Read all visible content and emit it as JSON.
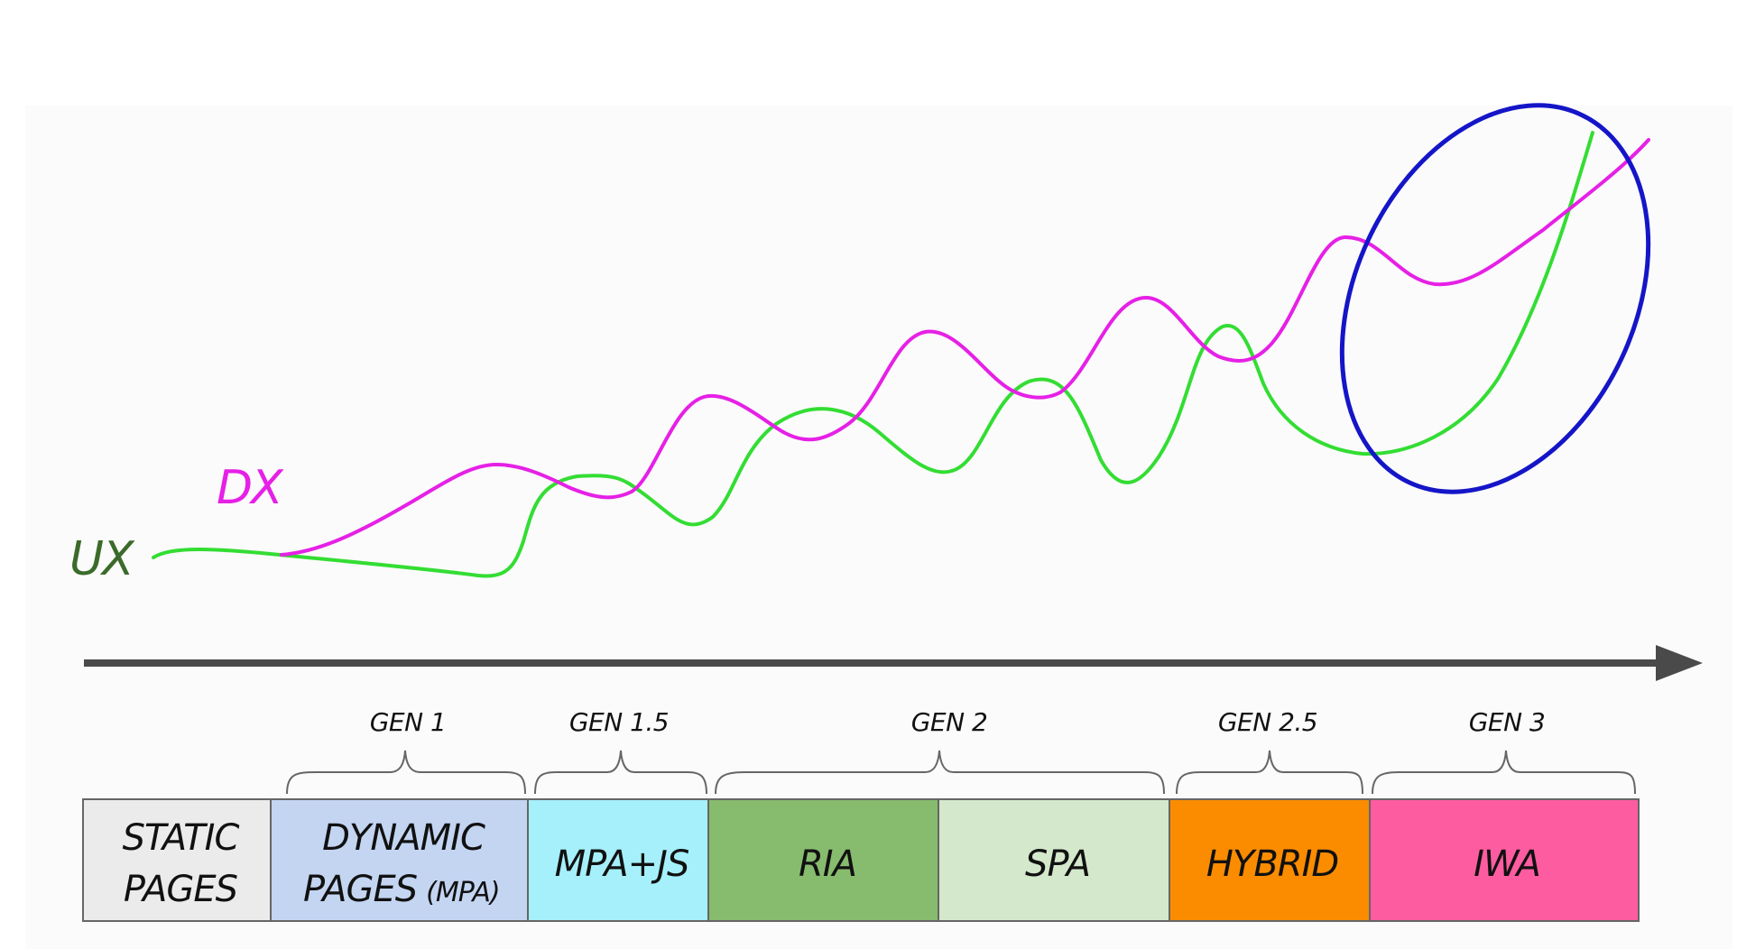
{
  "curves": {
    "dx": {
      "label": "DX",
      "color": "#e620e6"
    },
    "ux": {
      "label": "UX",
      "color": "#33dd33",
      "label_color": "#3b6b2a"
    }
  },
  "highlight_color": "#1515c8",
  "axis_color": "#4a4a4a",
  "generations": [
    {
      "label": "GEN 1"
    },
    {
      "label": "GEN 1.5"
    },
    {
      "label": "GEN 2"
    },
    {
      "label": "GEN 2.5"
    },
    {
      "label": "GEN 3"
    }
  ],
  "segments": [
    {
      "lines": [
        "STATIC",
        "PAGES"
      ],
      "color": "#ebebeb"
    },
    {
      "lines": [
        "DYNAMIC",
        "PAGES"
      ],
      "suffix": "(MPA)",
      "color": "#c4d5f2"
    },
    {
      "lines": [
        "MPA+JS"
      ],
      "color": "#a5f0fb"
    },
    {
      "lines": [
        "RIA"
      ],
      "color": "#87bb6e"
    },
    {
      "lines": [
        "SPA"
      ],
      "color": "#d4e8cc"
    },
    {
      "lines": [
        "HYBRID"
      ],
      "color": "#fb8c00"
    },
    {
      "lines": [
        "IWA"
      ],
      "color": "#fe5ca0"
    }
  ]
}
